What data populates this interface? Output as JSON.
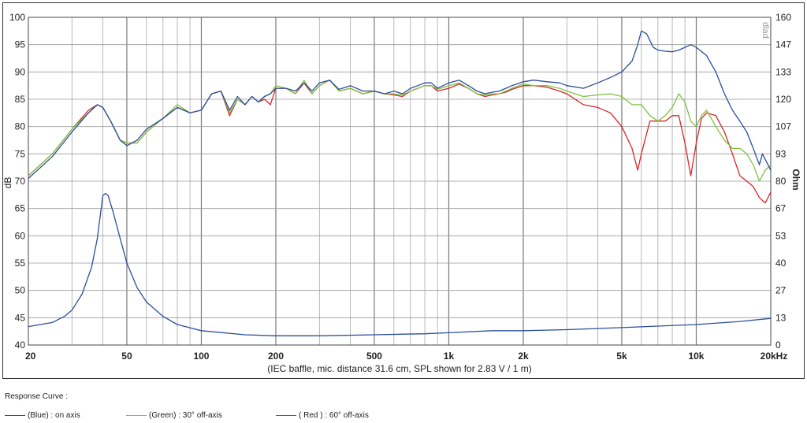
{
  "chart_data": {
    "type": "line",
    "title": "",
    "subtitle": "(IEC baffle, mic. distance 31.6 cm, SPL shown for 2.83 V / 1 m)",
    "xlabel": "",
    "ylabel": "dB",
    "y2label": "Ohm",
    "x_scale": "log",
    "xlim": [
      20,
      20000
    ],
    "ylim": [
      40,
      100
    ],
    "y2lim": [
      0,
      160
    ],
    "grid": true,
    "x_ticks": [
      {
        "value": 20,
        "label": "20"
      },
      {
        "value": 50,
        "label": "50"
      },
      {
        "value": 100,
        "label": "100"
      },
      {
        "value": 200,
        "label": "200"
      },
      {
        "value": 500,
        "label": "500"
      },
      {
        "value": 1000,
        "label": "1k"
      },
      {
        "value": 2000,
        "label": "2k"
      },
      {
        "value": 5000,
        "label": "5k"
      },
      {
        "value": 10000,
        "label": "10k"
      },
      {
        "value": 20000,
        "label": "20kHz"
      }
    ],
    "y_ticks": [
      "100",
      "95",
      "90",
      "85",
      "80",
      "75",
      "70",
      "65",
      "60",
      "55",
      "50",
      "45",
      "40"
    ],
    "y_tick_values": [
      100,
      95,
      90,
      85,
      80,
      75,
      70,
      65,
      60,
      55,
      50,
      45,
      40
    ],
    "y2_ticks": [
      "160",
      "147",
      "133",
      "120",
      "107",
      "93",
      "80",
      "67",
      "53",
      "40",
      "27",
      "13",
      "0"
    ],
    "watermark": "dlad",
    "series": [
      {
        "name": "(Blue)  : on axis",
        "color": "#2b4e9c",
        "axis": "left",
        "points": [
          [
            20,
            70.5
          ],
          [
            25,
            74.5
          ],
          [
            30,
            79
          ],
          [
            35,
            82.5
          ],
          [
            38,
            84
          ],
          [
            40,
            83.5
          ],
          [
            43,
            81
          ],
          [
            47,
            77.5
          ],
          [
            50,
            76.5
          ],
          [
            55,
            77.5
          ],
          [
            60,
            79.5
          ],
          [
            70,
            81.5
          ],
          [
            80,
            83.5
          ],
          [
            90,
            82.5
          ],
          [
            100,
            83
          ],
          [
            110,
            86
          ],
          [
            120,
            86.5
          ],
          [
            130,
            83
          ],
          [
            140,
            85.5
          ],
          [
            150,
            84
          ],
          [
            160,
            85.5
          ],
          [
            170,
            84.5
          ],
          [
            180,
            85.5
          ],
          [
            190,
            86
          ],
          [
            200,
            87
          ],
          [
            220,
            87
          ],
          [
            240,
            86.5
          ],
          [
            260,
            88
          ],
          [
            280,
            86.5
          ],
          [
            300,
            88
          ],
          [
            330,
            88.5
          ],
          [
            360,
            86.8
          ],
          [
            400,
            87.5
          ],
          [
            450,
            86.5
          ],
          [
            500,
            86.5
          ],
          [
            550,
            86
          ],
          [
            600,
            86.5
          ],
          [
            650,
            86
          ],
          [
            700,
            87
          ],
          [
            750,
            87.5
          ],
          [
            800,
            88
          ],
          [
            850,
            88
          ],
          [
            900,
            87
          ],
          [
            1000,
            88
          ],
          [
            1100,
            88.5
          ],
          [
            1200,
            87.5
          ],
          [
            1300,
            86.5
          ],
          [
            1400,
            86
          ],
          [
            1500,
            86.3
          ],
          [
            1600,
            86.5
          ],
          [
            1700,
            87
          ],
          [
            1800,
            87.5
          ],
          [
            2000,
            88.2
          ],
          [
            2200,
            88.5
          ],
          [
            2500,
            88.2
          ],
          [
            2800,
            88
          ],
          [
            3000,
            87.5
          ],
          [
            3500,
            87
          ],
          [
            4000,
            88
          ],
          [
            4500,
            89
          ],
          [
            5000,
            90
          ],
          [
            5500,
            92
          ],
          [
            5800,
            95
          ],
          [
            6000,
            97.5
          ],
          [
            6300,
            97
          ],
          [
            6700,
            94.5
          ],
          [
            7000,
            94
          ],
          [
            7500,
            93.8
          ],
          [
            8000,
            93.7
          ],
          [
            8500,
            94
          ],
          [
            9000,
            94.5
          ],
          [
            9500,
            95
          ],
          [
            10000,
            94.5
          ],
          [
            11000,
            93
          ],
          [
            12000,
            90
          ],
          [
            13000,
            86
          ],
          [
            14000,
            83
          ],
          [
            15000,
            81
          ],
          [
            16000,
            79
          ],
          [
            17000,
            76
          ],
          [
            18000,
            73
          ],
          [
            18500,
            75
          ],
          [
            19000,
            74
          ],
          [
            20000,
            72
          ]
        ]
      },
      {
        "name": "(Green) : 30° off-axis",
        "color": "#7fc242",
        "axis": "left",
        "points": [
          [
            20,
            71
          ],
          [
            25,
            75
          ],
          [
            30,
            79.5
          ],
          [
            35,
            82.5
          ],
          [
            38,
            84
          ],
          [
            40,
            83.5
          ],
          [
            43,
            81
          ],
          [
            47,
            77.5
          ],
          [
            50,
            77
          ],
          [
            55,
            77
          ],
          [
            60,
            79
          ],
          [
            70,
            81.5
          ],
          [
            80,
            84
          ],
          [
            90,
            82.5
          ],
          [
            100,
            83
          ],
          [
            110,
            86
          ],
          [
            120,
            86.5
          ],
          [
            130,
            82.5
          ],
          [
            140,
            85
          ],
          [
            150,
            84
          ],
          [
            160,
            85.5
          ],
          [
            170,
            84.5
          ],
          [
            180,
            85.5
          ],
          [
            190,
            86
          ],
          [
            200,
            87.5
          ],
          [
            220,
            87
          ],
          [
            240,
            86
          ],
          [
            260,
            88.5
          ],
          [
            280,
            86
          ],
          [
            300,
            87.5
          ],
          [
            330,
            88.5
          ],
          [
            360,
            86.5
          ],
          [
            400,
            87
          ],
          [
            450,
            86
          ],
          [
            500,
            86.5
          ],
          [
            550,
            86
          ],
          [
            600,
            86
          ],
          [
            650,
            85.8
          ],
          [
            700,
            86.5
          ],
          [
            750,
            87
          ],
          [
            800,
            87.5
          ],
          [
            850,
            87.5
          ],
          [
            900,
            86.8
          ],
          [
            1000,
            87.5
          ],
          [
            1100,
            88
          ],
          [
            1200,
            87
          ],
          [
            1300,
            86
          ],
          [
            1400,
            85.8
          ],
          [
            1500,
            86
          ],
          [
            1600,
            86
          ],
          [
            1700,
            86.5
          ],
          [
            1800,
            87
          ],
          [
            2000,
            87.8
          ],
          [
            2200,
            87.5
          ],
          [
            2500,
            87.5
          ],
          [
            2800,
            87
          ],
          [
            3000,
            86.5
          ],
          [
            3500,
            85.5
          ],
          [
            4000,
            85.8
          ],
          [
            4500,
            86
          ],
          [
            5000,
            85.5
          ],
          [
            5500,
            84
          ],
          [
            6000,
            84
          ],
          [
            6500,
            82
          ],
          [
            7000,
            81
          ],
          [
            7500,
            82
          ],
          [
            8000,
            83.5
          ],
          [
            8500,
            86
          ],
          [
            9000,
            84.5
          ],
          [
            9500,
            81
          ],
          [
            10000,
            80
          ],
          [
            10500,
            82
          ],
          [
            11000,
            83
          ],
          [
            12000,
            80
          ],
          [
            13000,
            77.5
          ],
          [
            14000,
            76
          ],
          [
            15000,
            76
          ],
          [
            16000,
            75
          ],
          [
            17000,
            73
          ],
          [
            18000,
            70
          ],
          [
            19000,
            72
          ],
          [
            20000,
            73
          ]
        ]
      },
      {
        "name": "( Red ) : 60° off-axis",
        "color": "#d9262d",
        "axis": "left",
        "points": [
          [
            20,
            71
          ],
          [
            25,
            75
          ],
          [
            30,
            79.5
          ],
          [
            35,
            83
          ],
          [
            38,
            84
          ],
          [
            40,
            83.5
          ],
          [
            43,
            81
          ],
          [
            47,
            77.5
          ],
          [
            50,
            77
          ],
          [
            55,
            77
          ],
          [
            60,
            79
          ],
          [
            70,
            81.5
          ],
          [
            80,
            83.5
          ],
          [
            90,
            82.5
          ],
          [
            100,
            83
          ],
          [
            110,
            86
          ],
          [
            120,
            86.5
          ],
          [
            130,
            82
          ],
          [
            140,
            85
          ],
          [
            150,
            84
          ],
          [
            160,
            85.5
          ],
          [
            170,
            84.5
          ],
          [
            180,
            85
          ],
          [
            190,
            84
          ],
          [
            200,
            87
          ],
          [
            220,
            87
          ],
          [
            240,
            86
          ],
          [
            260,
            88
          ],
          [
            280,
            86
          ],
          [
            300,
            87.5
          ],
          [
            330,
            88.5
          ],
          [
            360,
            86.5
          ],
          [
            400,
            87
          ],
          [
            450,
            86
          ],
          [
            500,
            86.5
          ],
          [
            550,
            86
          ],
          [
            600,
            85.8
          ],
          [
            650,
            85.5
          ],
          [
            700,
            86.5
          ],
          [
            750,
            87
          ],
          [
            800,
            87.5
          ],
          [
            850,
            87.5
          ],
          [
            900,
            86.5
          ],
          [
            1000,
            87
          ],
          [
            1100,
            87.8
          ],
          [
            1200,
            87
          ],
          [
            1300,
            86
          ],
          [
            1400,
            85.5
          ],
          [
            1500,
            85.8
          ],
          [
            1600,
            86
          ],
          [
            1700,
            86.3
          ],
          [
            1800,
            86.8
          ],
          [
            2000,
            87.5
          ],
          [
            2200,
            87.5
          ],
          [
            2500,
            87.2
          ],
          [
            2800,
            86.5
          ],
          [
            3000,
            86
          ],
          [
            3500,
            84
          ],
          [
            4000,
            83.5
          ],
          [
            4500,
            82.5
          ],
          [
            5000,
            80
          ],
          [
            5500,
            76
          ],
          [
            5800,
            72
          ],
          [
            6000,
            75
          ],
          [
            6500,
            81
          ],
          [
            7000,
            81
          ],
          [
            7500,
            81
          ],
          [
            8000,
            82
          ],
          [
            8500,
            82
          ],
          [
            9000,
            77
          ],
          [
            9500,
            71
          ],
          [
            10000,
            77
          ],
          [
            10500,
            81.5
          ],
          [
            11000,
            82.5
          ],
          [
            12000,
            82
          ],
          [
            13000,
            79
          ],
          [
            14000,
            75
          ],
          [
            15000,
            71
          ],
          [
            16000,
            70
          ],
          [
            17000,
            69
          ],
          [
            18000,
            67
          ],
          [
            19000,
            66
          ],
          [
            20000,
            68
          ]
        ]
      },
      {
        "name": "Impedance",
        "color": "#2b4e9c",
        "axis": "right",
        "points": [
          [
            20,
            9
          ],
          [
            25,
            11
          ],
          [
            28,
            14
          ],
          [
            30,
            17
          ],
          [
            33,
            25
          ],
          [
            36,
            38
          ],
          [
            38,
            52
          ],
          [
            40,
            73
          ],
          [
            41,
            74
          ],
          [
            42,
            73
          ],
          [
            44,
            65
          ],
          [
            47,
            52
          ],
          [
            50,
            40
          ],
          [
            55,
            28
          ],
          [
            60,
            21
          ],
          [
            70,
            14
          ],
          [
            80,
            10
          ],
          [
            100,
            7
          ],
          [
            150,
            5
          ],
          [
            200,
            4.5
          ],
          [
            300,
            4.5
          ],
          [
            500,
            5
          ],
          [
            800,
            5.5
          ],
          [
            1000,
            6
          ],
          [
            1500,
            7
          ],
          [
            2000,
            7
          ],
          [
            3000,
            7.5
          ],
          [
            5000,
            8.5
          ],
          [
            10000,
            10
          ],
          [
            15000,
            11.5
          ],
          [
            20000,
            13
          ]
        ]
      }
    ],
    "legend": {
      "title": "Response Curve :",
      "placement": "bottom",
      "items": [
        {
          "label": "(Blue)  : on axis",
          "color": "#2b4e9c"
        },
        {
          "label": "(Green) : 30° off-axis",
          "color": "#7fc242"
        },
        {
          "label": "( Red ) : 60° off-axis",
          "color": "#d9262d"
        }
      ]
    }
  }
}
